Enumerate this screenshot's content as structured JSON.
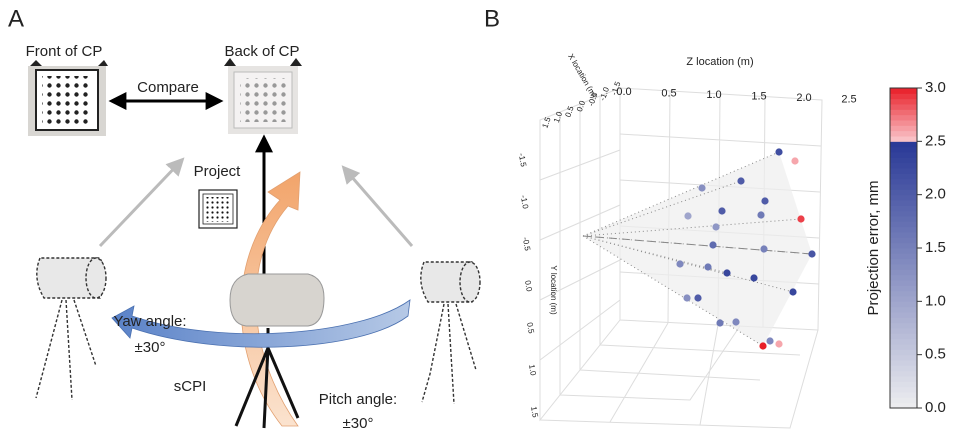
{
  "panel_a": {
    "letter": "A",
    "front_label": "Front of CP",
    "back_label": "Back of CP",
    "compare": "Compare",
    "project": "Project",
    "yaw_label": "Yaw angle:",
    "yaw_range": "±30°",
    "device": "sCPI",
    "pitch_label": "Pitch angle:",
    "pitch_range": "±30°"
  },
  "panel_b": {
    "letter": "B",
    "z_axis_label": "Z location (m)",
    "x_axis_label": "X location (m)",
    "y_axis_label": "Y location (m)",
    "z_ticks": [
      "0.0",
      "0.5",
      "1.0",
      "1.5",
      "2.0",
      "2.5"
    ],
    "x_ticks": [
      "1.5",
      "1.0",
      "0.5",
      "0.0",
      "-0.5",
      "-1.0",
      "-1.5"
    ],
    "y_ticks": [
      "-1.5",
      "-1.0",
      "-0.5",
      "0.0",
      "0.5",
      "1.0",
      "1.5"
    ],
    "point_errors": [
      2.2,
      2.6,
      1.3,
      2.0,
      2.0,
      1.0,
      2.0,
      1.6,
      2.9,
      1.2,
      1.8,
      1.5,
      2.1,
      1.4,
      1.6,
      2.3,
      2.3,
      2.3,
      1.3,
      2.0,
      1.6,
      1.4,
      3.0,
      2.6,
      1.4
    ],
    "colorbar": {
      "label": "Projection error, mm",
      "lim": [
        0,
        3
      ],
      "ticks": [
        {
          "value": 0,
          "label": "0.0"
        },
        {
          "value": 0.5,
          "label": "0.5"
        },
        {
          "value": 1,
          "label": "1.0"
        },
        {
          "value": 1.5,
          "label": "1.5"
        },
        {
          "value": 2,
          "label": "2.0"
        },
        {
          "value": 2.5,
          "label": "2.5"
        },
        {
          "value": 3,
          "label": "3.0"
        }
      ]
    }
  }
}
